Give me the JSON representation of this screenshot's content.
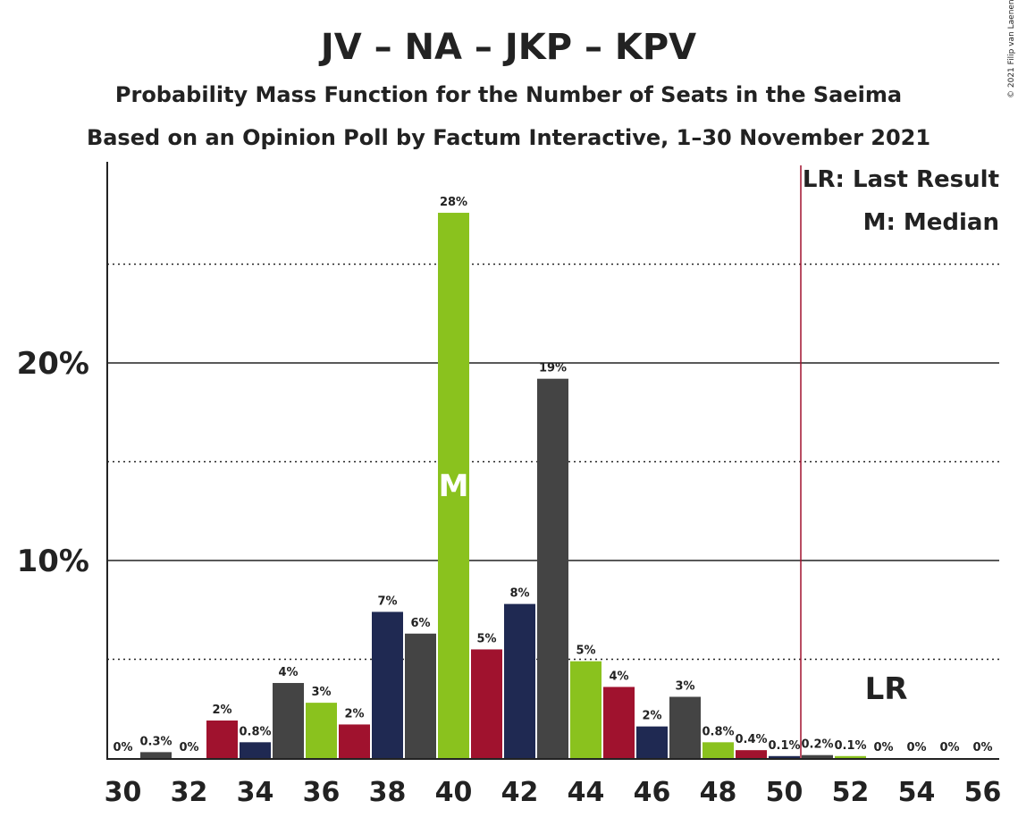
{
  "chart_data": {
    "type": "bar",
    "title": "JV – NA – JKP – KPV",
    "subtitle": "Probability Mass Function for the Number of Seats in the Saeima",
    "subtitle2": "Based on an Opinion Poll by Factum Interactive, 1–30 November 2021",
    "credit": "© 2021 Filip van Laenen",
    "categories": [
      30,
      31,
      32,
      33,
      34,
      35,
      36,
      37,
      38,
      39,
      40,
      41,
      42,
      43,
      44,
      45,
      46,
      47,
      48,
      49,
      50,
      51,
      52,
      53,
      54,
      55,
      56
    ],
    "values": [
      0,
      0.3,
      0,
      1.9,
      0.8,
      3.8,
      2.8,
      1.7,
      7.4,
      6.3,
      27.6,
      5.5,
      7.8,
      19.2,
      4.9,
      3.6,
      1.6,
      3.1,
      0.8,
      0.4,
      0.1,
      0.15,
      0.1,
      0,
      0,
      0,
      0
    ],
    "labels": [
      "0%",
      "0.3%",
      "0%",
      "2%",
      "0.8%",
      "4%",
      "3%",
      "2%",
      "7%",
      "6%",
      "28%",
      "5%",
      "8%",
      "19%",
      "5%",
      "4%",
      "2%",
      "3%",
      "0.8%",
      "0.4%",
      "0.1%",
      "0.2%",
      "0.1%",
      "0%",
      "0%",
      "0%",
      "0%"
    ],
    "xticks": [
      "30",
      "32",
      "34",
      "36",
      "38",
      "40",
      "42",
      "44",
      "46",
      "48",
      "50",
      "52",
      "54",
      "56"
    ],
    "ytick_values": [
      10,
      20
    ],
    "ytick_labels": [
      "10%",
      "20%"
    ],
    "dotted_grid": [
      5,
      15,
      25
    ],
    "ylim": [
      0,
      30
    ],
    "median_seat": 40,
    "median_label": "M",
    "last_result_seat": 51,
    "last_result_label": "LR",
    "legend": [
      "LR: Last Result",
      "M: Median"
    ],
    "colors": [
      "#1f2952",
      "#444444",
      "#a0122e",
      "#8ac21e"
    ],
    "color_sequence": [
      3,
      1,
      0,
      2,
      0,
      1,
      3,
      2,
      0,
      1,
      3,
      2,
      0,
      1,
      3,
      2,
      0,
      1,
      3,
      2,
      0,
      1,
      3,
      2,
      0,
      1,
      3
    ],
    "lr_line_color": "#a0122e"
  }
}
